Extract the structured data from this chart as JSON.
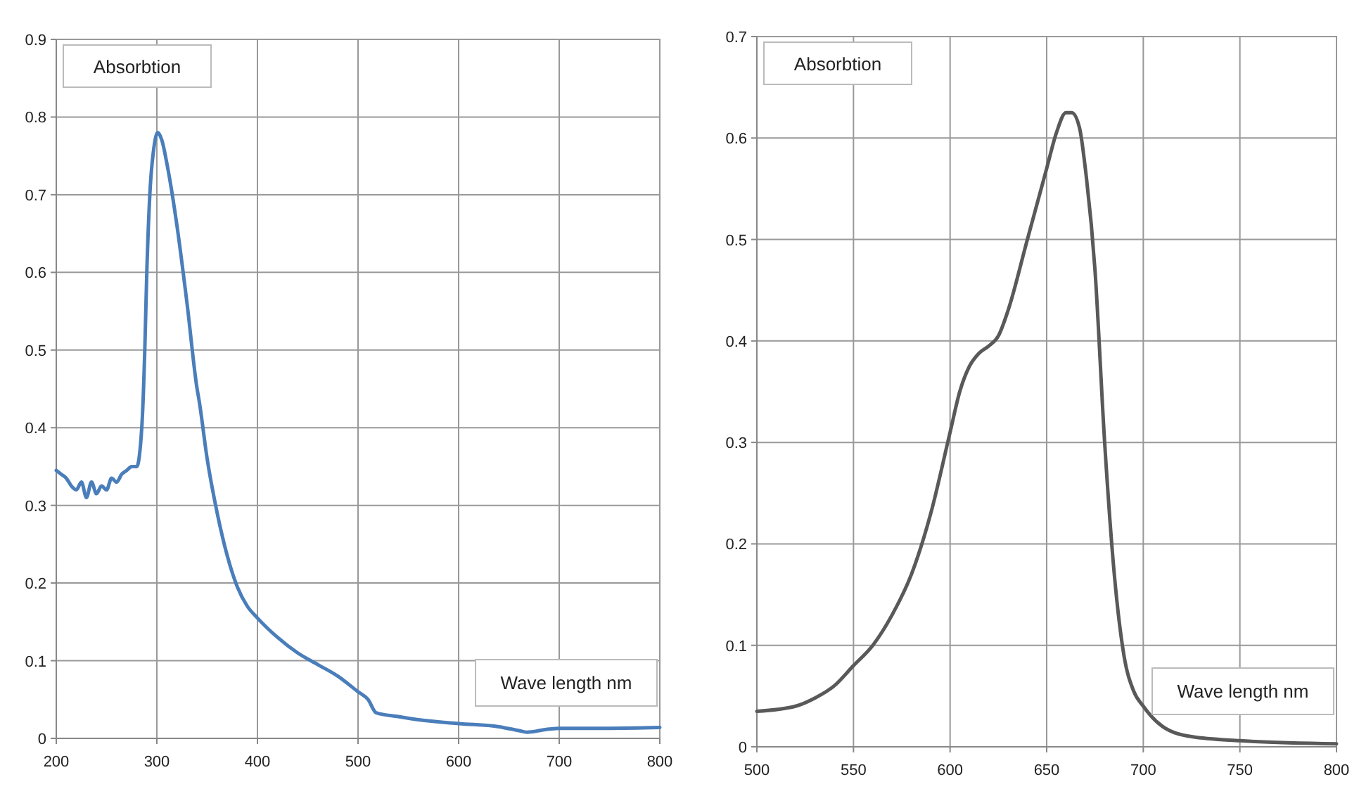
{
  "chart_data": [
    {
      "type": "line",
      "xlabel": "Wave length nm",
      "ylabel": "Absorbtion",
      "xlim": [
        200,
        800
      ],
      "xticks": [
        200,
        300,
        400,
        500,
        600,
        700,
        800
      ],
      "ylim": [
        0,
        0.9
      ],
      "yticks": [
        0,
        0.1,
        0.2,
        0.3,
        0.4,
        0.5,
        0.6,
        0.7,
        0.8,
        0.9
      ],
      "grid": true,
      "series": [
        {
          "color": "#4a7ebb",
          "x": [
            200,
            205,
            210,
            215,
            220,
            225,
            230,
            235,
            240,
            245,
            250,
            255,
            260,
            265,
            270,
            275,
            280,
            285,
            288,
            290,
            293,
            297,
            301,
            305,
            310,
            320,
            330,
            340,
            342,
            350,
            360,
            370,
            380,
            390,
            400,
            420,
            440,
            460,
            480,
            500,
            510,
            518,
            540,
            560,
            600,
            640,
            660,
            668,
            690,
            700,
            750,
            800
          ],
          "values": [
            0.345,
            0.34,
            0.335,
            0.325,
            0.32,
            0.33,
            0.31,
            0.33,
            0.315,
            0.325,
            0.32,
            0.335,
            0.33,
            0.34,
            0.345,
            0.35,
            0.35,
            0.4,
            0.5,
            0.6,
            0.7,
            0.76,
            0.78,
            0.77,
            0.74,
            0.66,
            0.56,
            0.45,
            0.435,
            0.36,
            0.29,
            0.235,
            0.195,
            0.17,
            0.155,
            0.13,
            0.11,
            0.095,
            0.08,
            0.06,
            0.05,
            0.033,
            0.028,
            0.024,
            0.019,
            0.015,
            0.01,
            0.008,
            0.012,
            0.013,
            0.013,
            0.014
          ]
        }
      ]
    },
    {
      "type": "line",
      "xlabel": "Wave length nm",
      "ylabel": "Absorbtion",
      "xlim": [
        500,
        800
      ],
      "xticks": [
        500,
        550,
        600,
        650,
        700,
        750,
        800
      ],
      "ylim": [
        0,
        0.7
      ],
      "yticks": [
        0,
        0.1,
        0.2,
        0.3,
        0.4,
        0.5,
        0.6,
        0.7
      ],
      "grid": true,
      "series": [
        {
          "color": "#595959",
          "x": [
            500,
            520,
            530,
            540,
            550,
            560,
            570,
            580,
            590,
            600,
            605,
            610,
            615,
            620,
            625,
            630,
            640,
            650,
            655,
            660,
            663,
            667,
            670,
            675,
            680,
            685,
            690,
            695,
            700,
            710,
            725,
            750,
            800
          ],
          "values": [
            0.035,
            0.04,
            0.048,
            0.06,
            0.08,
            0.1,
            0.13,
            0.17,
            0.23,
            0.31,
            0.35,
            0.375,
            0.388,
            0.395,
            0.405,
            0.43,
            0.5,
            0.57,
            0.605,
            0.625,
            0.625,
            0.61,
            0.57,
            0.47,
            0.3,
            0.17,
            0.09,
            0.055,
            0.04,
            0.02,
            0.01,
            0.006,
            0.003
          ]
        }
      ]
    }
  ]
}
